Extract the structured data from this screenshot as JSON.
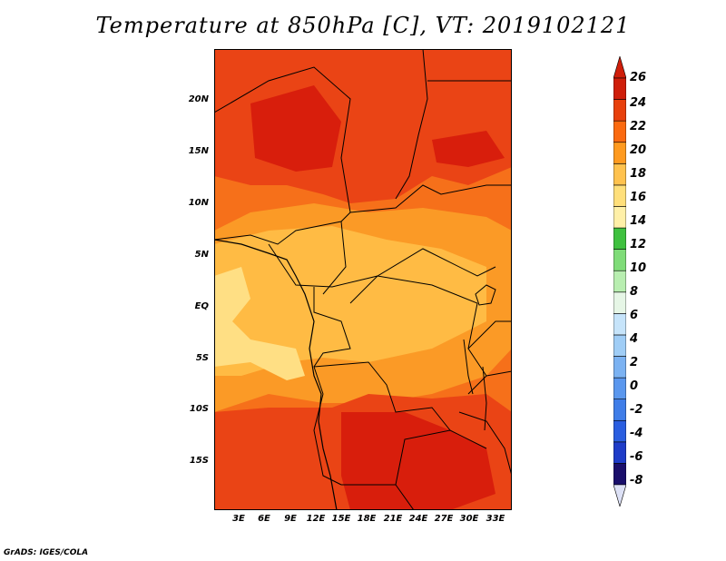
{
  "title": "Temperature at 850hPa [C], VT: 2019102121",
  "credit": "GrADS: IGES/COLA",
  "map": {
    "lat_labels": [
      "20N",
      "15N",
      "10N",
      "5N",
      "EQ",
      "5S",
      "10S",
      "15S"
    ],
    "lon_labels": [
      "3E",
      "6E",
      "9E",
      "12E",
      "15E",
      "18E",
      "21E",
      "24E",
      "27E",
      "30E",
      "33E"
    ]
  },
  "colorbar": {
    "labels": [
      "26",
      "24",
      "22",
      "20",
      "18",
      "16",
      "14",
      "12",
      "10",
      "8",
      "6",
      "4",
      "2",
      "0",
      "-2",
      "-4",
      "-6",
      "-8"
    ],
    "colors": [
      "#1a0f6b",
      "#1e3cc8",
      "#2a5ee0",
      "#3f7de8",
      "#5a97ee",
      "#7bb2f2",
      "#9fcdf6",
      "#c6e4fa",
      "#e6f6e6",
      "#b8eeb0",
      "#7fdc78",
      "#3fc13f",
      "#fff0a8",
      "#ffdf7a",
      "#ffc24e",
      "#ff9a1f",
      "#fb6a10",
      "#e8400c",
      "#cf1e0a"
    ]
  },
  "colors": {
    "t26": "#d81e0c",
    "t24": "#ea4415",
    "t22": "#f6701a",
    "t20": "#fb9a26",
    "t18": "#ffbb44",
    "t16": "#ffdf84",
    "border": "#000000"
  }
}
